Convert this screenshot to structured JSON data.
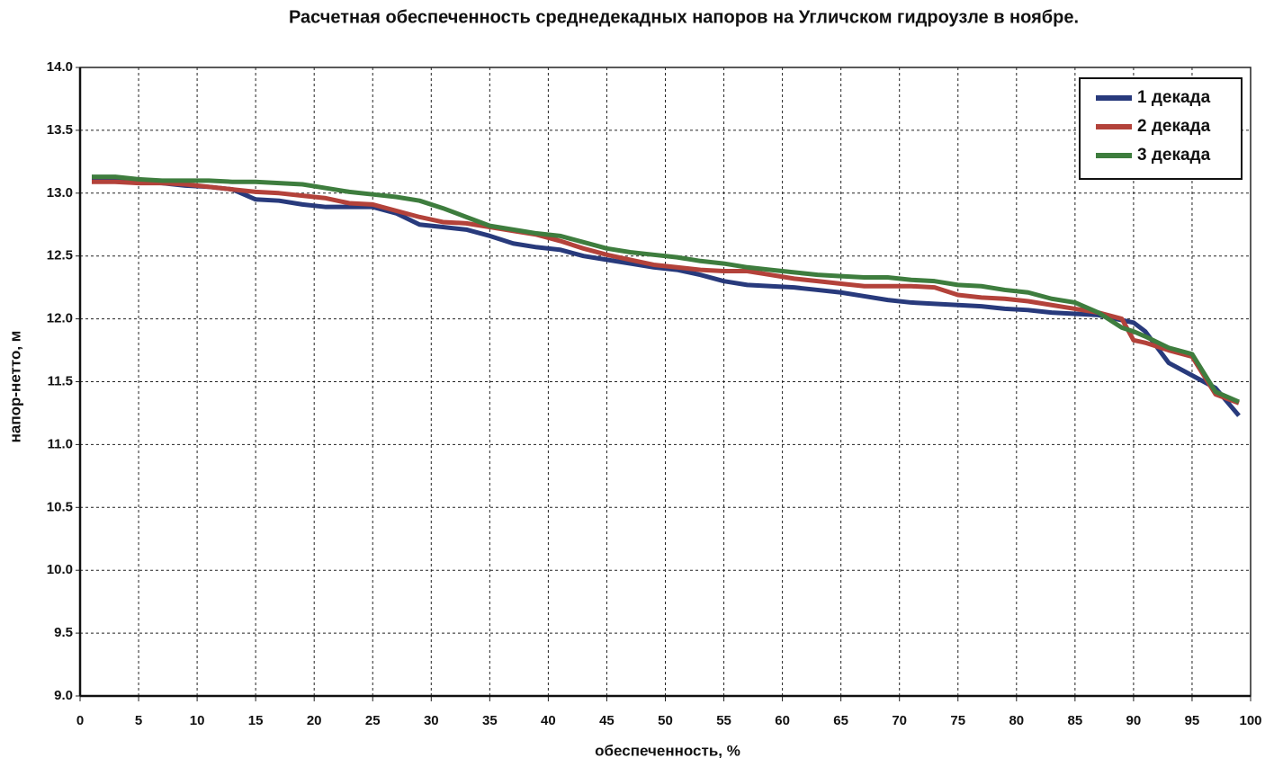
{
  "chart_data": {
    "type": "line",
    "title": "Расчетная обеспеченность среднедекадных напоров на Угличском гидроузле в ноябре.",
    "x_label": "обеспеченность,  %",
    "y_label": "напор-нетто, м",
    "x": [
      1,
      3,
      5,
      7,
      9,
      11,
      13,
      15,
      17,
      19,
      21,
      23,
      25,
      27,
      29,
      31,
      33,
      35,
      37,
      39,
      41,
      43,
      45,
      47,
      49,
      51,
      53,
      55,
      57,
      59,
      61,
      63,
      65,
      67,
      69,
      71,
      73,
      75,
      77,
      79,
      81,
      83,
      85,
      87,
      89,
      90,
      91,
      93,
      95,
      97,
      99
    ],
    "series": [
      {
        "name": "1 декада",
        "color": "#283a7c",
        "values": [
          13.1,
          13.1,
          13.09,
          13.08,
          13.06,
          13.05,
          13.03,
          12.95,
          12.94,
          12.91,
          12.89,
          12.89,
          12.89,
          12.84,
          12.75,
          12.73,
          12.71,
          12.66,
          12.6,
          12.57,
          12.55,
          12.5,
          12.47,
          12.44,
          12.41,
          12.39,
          12.35,
          12.3,
          12.27,
          12.26,
          12.25,
          12.23,
          12.21,
          12.18,
          12.15,
          12.13,
          12.12,
          12.11,
          12.1,
          12.08,
          12.07,
          12.05,
          12.04,
          12.03,
          11.99,
          11.97,
          11.9,
          11.65,
          11.55,
          11.45,
          11.23
        ]
      },
      {
        "name": "2 декада",
        "color": "#b3423a",
        "values": [
          13.09,
          13.09,
          13.08,
          13.08,
          13.07,
          13.05,
          13.03,
          13.01,
          13.0,
          12.98,
          12.96,
          12.92,
          12.91,
          12.86,
          12.81,
          12.77,
          12.76,
          12.73,
          12.7,
          12.67,
          12.62,
          12.56,
          12.51,
          12.47,
          12.43,
          12.41,
          12.39,
          12.38,
          12.38,
          12.35,
          12.32,
          12.3,
          12.28,
          12.26,
          12.26,
          12.26,
          12.25,
          12.19,
          12.17,
          12.16,
          12.14,
          12.11,
          12.08,
          12.05,
          12.0,
          11.83,
          11.81,
          11.75,
          11.7,
          11.4,
          11.33
        ]
      },
      {
        "name": "3 декада",
        "color": "#3e7d3e",
        "values": [
          13.13,
          13.13,
          13.11,
          13.1,
          13.1,
          13.1,
          13.09,
          13.09,
          13.08,
          13.07,
          13.04,
          13.01,
          12.99,
          12.97,
          12.94,
          12.88,
          12.81,
          12.74,
          12.71,
          12.68,
          12.66,
          12.61,
          12.56,
          12.53,
          12.51,
          12.49,
          12.46,
          12.44,
          12.41,
          12.39,
          12.37,
          12.35,
          12.34,
          12.33,
          12.33,
          12.31,
          12.3,
          12.27,
          12.26,
          12.23,
          12.21,
          12.16,
          12.13,
          12.05,
          11.93,
          11.9,
          11.86,
          11.77,
          11.72,
          11.42,
          11.34
        ]
      }
    ],
    "xlim": [
      0,
      100
    ],
    "xticks": [
      0,
      5,
      10,
      15,
      20,
      25,
      30,
      35,
      40,
      45,
      50,
      55,
      60,
      65,
      70,
      75,
      80,
      85,
      90,
      95,
      100
    ],
    "ylim": [
      9,
      14
    ],
    "yticks": [
      {
        "value": 9,
        "label": "9.0"
      },
      {
        "value": 9.5,
        "label": "9.5"
      },
      {
        "value": 10,
        "label": "10.0"
      },
      {
        "value": 10.5,
        "label": "10.5"
      },
      {
        "value": 11,
        "label": "11.0"
      },
      {
        "value": 11.5,
        "label": "11.5"
      },
      {
        "value": 12,
        "label": "12.0"
      },
      {
        "value": 12.5,
        "label": "12.5"
      },
      {
        "value": 13,
        "label": "13.0"
      },
      {
        "value": 13.5,
        "label": "13.5"
      },
      {
        "value": 14,
        "label": "14.0"
      }
    ],
    "grid": true,
    "legend_position": "upper-right"
  }
}
